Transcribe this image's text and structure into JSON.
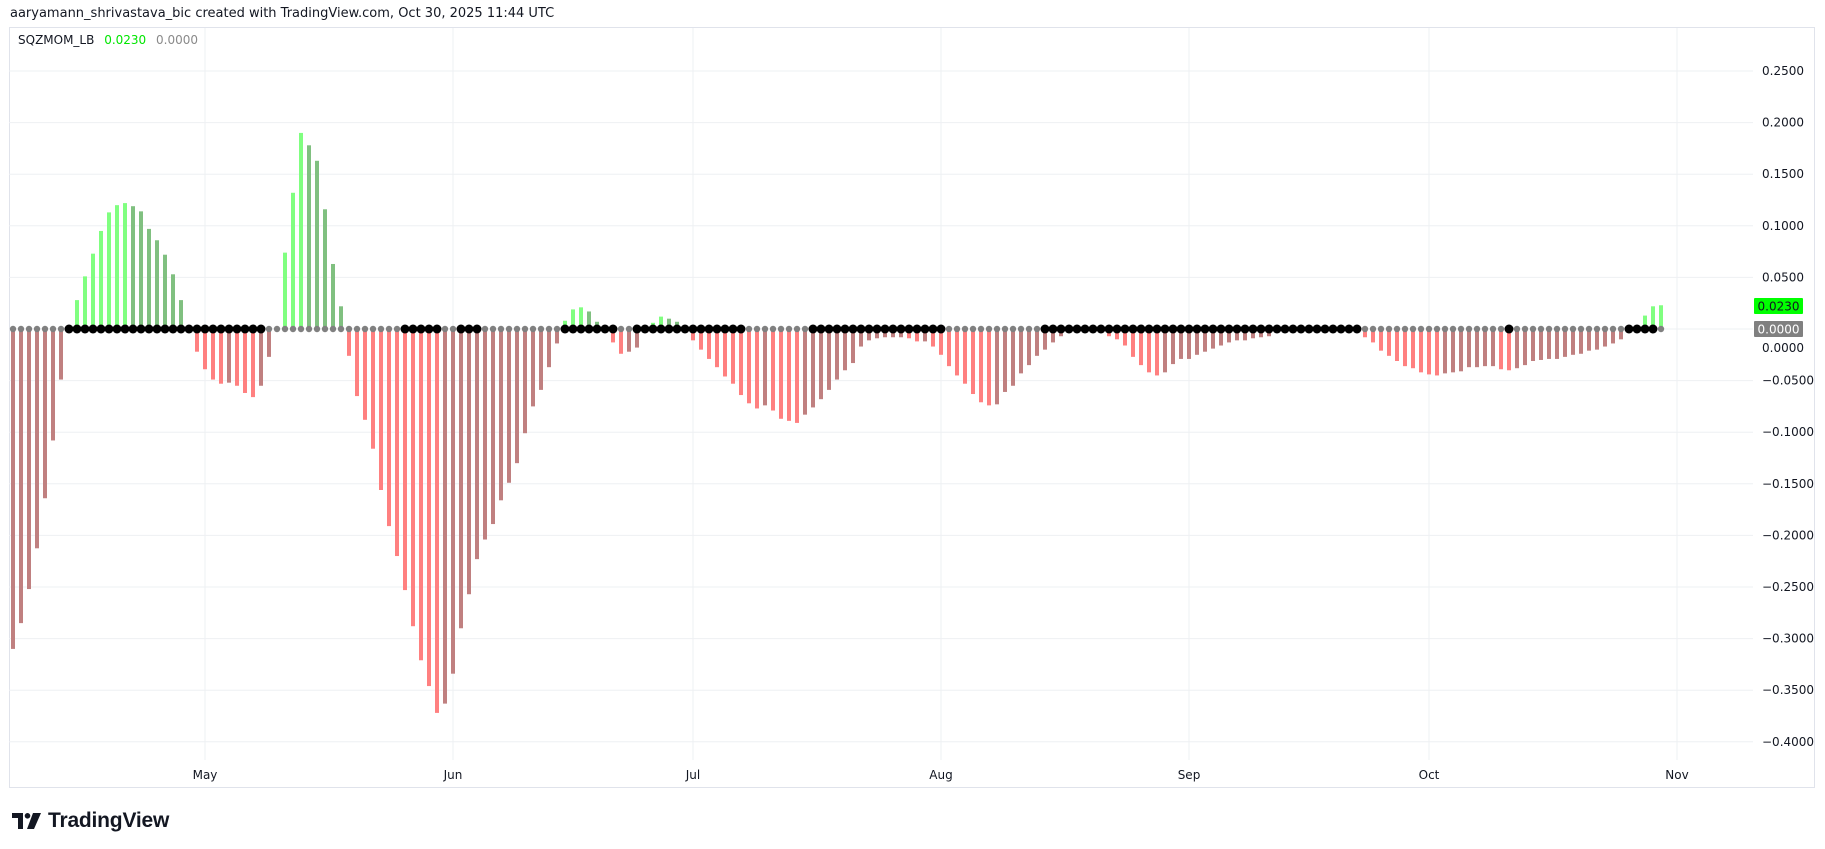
{
  "header": {
    "credit": "aaryamann_shrivastava_bic created with TradingView.com, Oct 30, 2025 11:44 UTC"
  },
  "legend": {
    "name": "SQZMOM_LB",
    "value": "0.0230",
    "signal": "0.0000"
  },
  "logo": {
    "text": "TradingView"
  },
  "badges": {
    "last_value": "0.0230",
    "zero_value": "0.0000"
  },
  "colors": {
    "lime": "#80ff80",
    "green": "#80c080",
    "red": "#ff8080",
    "maroon": "#c08080",
    "squeeze_on": "#000000",
    "squeeze_off": "#808080",
    "badge_last_bg": "#00ff00",
    "badge_zero_bg": "#808080",
    "grid": "#eef0f3"
  },
  "chart_data": {
    "type": "bar",
    "title": "SQZMOM_LB",
    "xlabel": "",
    "ylabel": "",
    "ylim": [
      -0.42,
      0.28
    ],
    "grid": true,
    "y_ticks": [
      "0.2500",
      "0.2000",
      "0.1500",
      "0.1000",
      "0.0500",
      "0.0000",
      "−0.0500",
      "−0.1000",
      "−0.1500",
      "−0.2000",
      "−0.2500",
      "−0.3000",
      "−0.3500",
      "−0.4000"
    ],
    "y_tick_values": [
      0.25,
      0.2,
      0.15,
      0.1,
      0.05,
      0,
      -0.05,
      -0.1,
      -0.15,
      -0.2,
      -0.25,
      -0.3,
      -0.35,
      -0.4
    ],
    "x_ticks": [
      {
        "label": "May",
        "bar": 24
      },
      {
        "label": "Jun",
        "bar": 55
      },
      {
        "label": "Jul",
        "bar": 85
      },
      {
        "label": "Aug",
        "bar": 116
      },
      {
        "label": "Sep",
        "bar": 147
      },
      {
        "label": "Oct",
        "bar": 177
      },
      {
        "label": "Nov",
        "bar": 208
      }
    ],
    "values": [
      -0.31,
      -0.285,
      -0.252,
      -0.2125,
      -0.164,
      -0.108,
      -0.049,
      0.002,
      0.028,
      0.051,
      0.073,
      0.095,
      0.113,
      0.12,
      0.122,
      0.119,
      0.114,
      0.097,
      0.086,
      0.072,
      0.053,
      0.028,
      -0.001,
      -0.022,
      -0.039,
      -0.049,
      -0.053,
      -0.052,
      -0.055,
      -0.062,
      -0.066,
      -0.055,
      -0.027,
      0.001,
      0.074,
      0.132,
      0.19,
      0.178,
      0.163,
      0.116,
      0.063,
      0.022,
      -0.026,
      -0.065,
      -0.088,
      -0.116,
      -0.156,
      -0.191,
      -0.22,
      -0.253,
      -0.288,
      -0.321,
      -0.346,
      -0.372,
      -0.363,
      -0.334,
      -0.29,
      -0.257,
      -0.223,
      -0.204,
      -0.189,
      -0.166,
      -0.149,
      -0.13,
      -0.101,
      -0.075,
      -0.059,
      -0.037,
      -0.014,
      0.008,
      0.019,
      0.021,
      0.017,
      0.007,
      0.001,
      -0.013,
      -0.024,
      -0.022,
      -0.018,
      -0.001,
      0.006,
      0.012,
      0.01,
      0.007,
      0.001,
      -0.011,
      -0.02,
      -0.029,
      -0.037,
      -0.046,
      -0.053,
      -0.064,
      -0.072,
      -0.077,
      -0.074,
      -0.079,
      -0.087,
      -0.089,
      -0.091,
      -0.083,
      -0.076,
      -0.068,
      -0.059,
      -0.049,
      -0.04,
      -0.033,
      -0.017,
      -0.011,
      -0.009,
      -0.008,
      -0.008,
      -0.008,
      -0.009,
      -0.012,
      -0.012,
      -0.017,
      -0.025,
      -0.036,
      -0.045,
      -0.053,
      -0.063,
      -0.071,
      -0.074,
      -0.073,
      -0.061,
      -0.055,
      -0.043,
      -0.035,
      -0.026,
      -0.02,
      -0.013,
      -0.007,
      -0.001,
      -0.0005,
      -0.0004,
      -0.0004,
      -0.001,
      -0.007,
      -0.01,
      -0.016,
      -0.027,
      -0.035,
      -0.042,
      -0.045,
      -0.042,
      -0.034,
      -0.029,
      -0.029,
      -0.025,
      -0.022,
      -0.019,
      -0.016,
      -0.013,
      -0.011,
      -0.011,
      -0.009,
      -0.008,
      -0.007,
      -0.001,
      -0.001,
      -0.0008,
      -0.0006,
      -0.0005,
      -0.0004,
      -0.0003,
      -0.0002,
      0.002,
      0.001,
      0.0005,
      -0.008,
      -0.013,
      -0.021,
      -0.026,
      -0.031,
      -0.036,
      -0.038,
      -0.042,
      -0.044,
      -0.045,
      -0.043,
      -0.042,
      -0.041,
      -0.037,
      -0.037,
      -0.036,
      -0.036,
      -0.039,
      -0.04,
      -0.038,
      -0.035,
      -0.031,
      -0.03,
      -0.029,
      -0.029,
      -0.027,
      -0.025,
      -0.024,
      -0.021,
      -0.02,
      -0.017,
      -0.014,
      -0.01,
      -0.001,
      0.001,
      0.013,
      0.022,
      0.023
    ],
    "squeeze_on_ranges": [
      [
        7,
        31
      ],
      [
        49,
        53
      ],
      [
        56,
        58
      ],
      [
        69,
        75
      ],
      [
        78,
        91
      ],
      [
        100,
        116
      ],
      [
        129,
        168
      ],
      [
        187,
        187
      ],
      [
        202,
        205
      ]
    ]
  }
}
